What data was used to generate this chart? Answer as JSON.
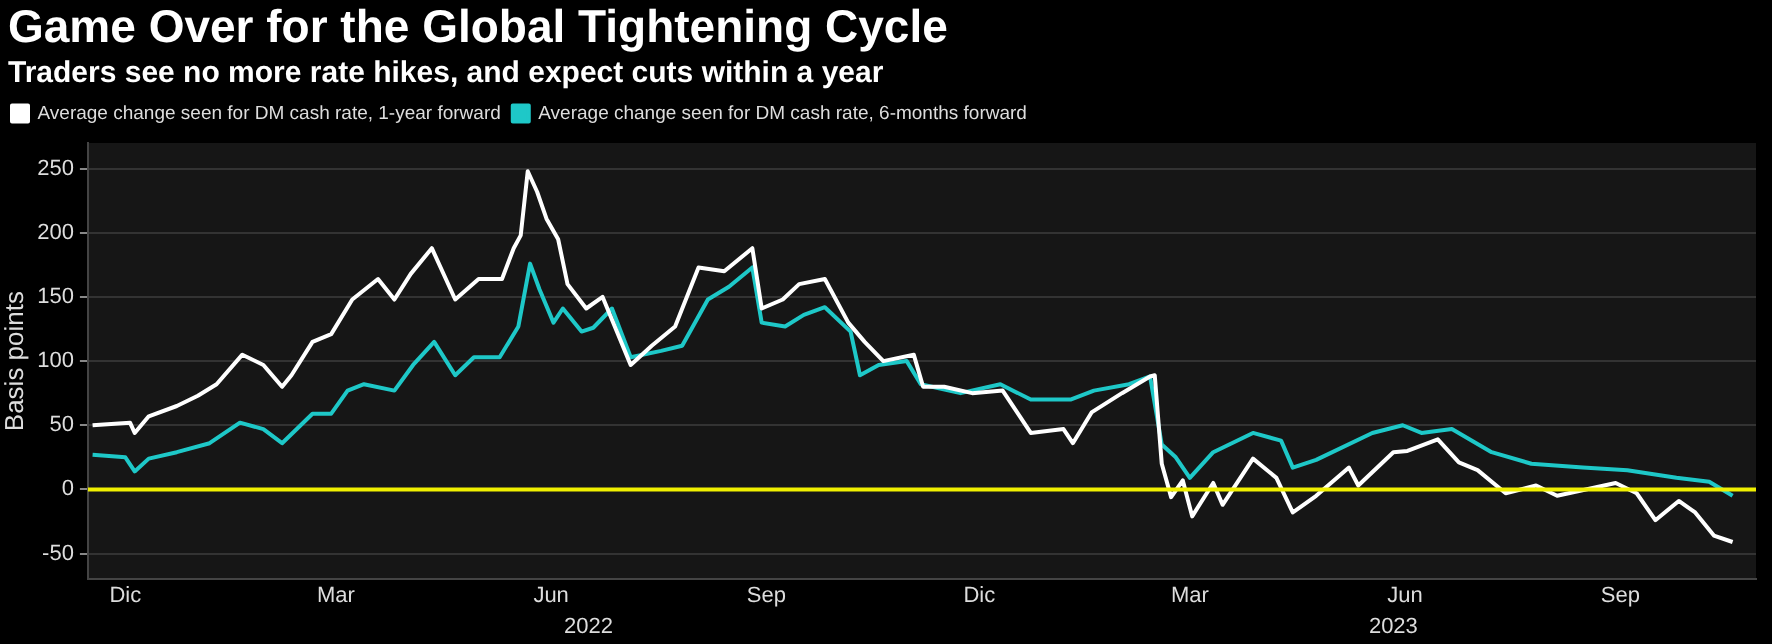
{
  "chart_data": {
    "type": "line",
    "title": "Game Over for the Global Tightening Cycle",
    "subtitle": "Traders see no more rate hikes, and expect cuts within a year",
    "ylabel": "Basis points",
    "xlim": [
      "2021-11-29",
      "2023-11-12"
    ],
    "xticks": [
      {
        "value": "2021-12-15",
        "label": "Dic"
      },
      {
        "value": "2022-03-15",
        "label": "Mar"
      },
      {
        "value": "2022-06-15",
        "label": "Jun"
      },
      {
        "value": "2022-09-15",
        "label": "Sep"
      },
      {
        "value": "2022-12-15",
        "label": "Dic"
      },
      {
        "value": "2023-03-15",
        "label": "Mar"
      },
      {
        "value": "2023-06-15",
        "label": "Jun"
      },
      {
        "value": "2023-09-15",
        "label": "Sep"
      }
    ],
    "x2lim": [
      "2021-11-29",
      "2023-11-12"
    ],
    "x2ticks": [
      {
        "value": "2022-07-01",
        "label": "2022"
      },
      {
        "value": "2023-06-10",
        "label": "2023"
      }
    ],
    "ylim": [
      -70,
      270
    ],
    "yticks": [
      -50,
      0,
      50,
      100,
      150,
      200,
      250
    ],
    "grid": "y",
    "legend": "top left",
    "marker": "none",
    "line_style": "solid",
    "ref_lines": [
      {
        "axis": "y",
        "value": 0,
        "color": "#f0f000"
      }
    ],
    "series": [
      {
        "name": "Average change seen for DM cash rate, 1-year forward",
        "color": "#ffffff",
        "x": [
          "2021-12-01",
          "2021-12-17",
          "2021-12-19",
          "2021-12-25",
          "2022-01-06",
          "2022-01-15",
          "2022-01-23",
          "2022-02-03",
          "2022-02-12",
          "2022-02-20",
          "2022-02-24",
          "2022-03-05",
          "2022-03-13",
          "2022-03-22",
          "2022-04-02",
          "2022-04-09",
          "2022-04-16",
          "2022-04-25",
          "2022-05-05",
          "2022-05-15",
          "2022-05-25",
          "2022-05-30",
          "2022-06-02",
          "2022-06-05",
          "2022-06-09",
          "2022-06-13",
          "2022-06-18",
          "2022-06-22",
          "2022-06-30",
          "2022-07-07",
          "2022-07-19",
          "2022-07-28",
          "2022-08-07",
          "2022-08-17",
          "2022-08-28",
          "2022-09-09",
          "2022-09-13",
          "2022-09-22",
          "2022-09-29",
          "2022-10-10",
          "2022-10-20",
          "2022-10-27",
          "2022-11-04",
          "2022-11-17",
          "2022-11-21",
          "2022-11-30",
          "2022-12-12",
          "2022-12-25",
          "2023-01-06",
          "2023-01-20",
          "2023-01-24",
          "2023-02-01",
          "2023-02-14",
          "2023-02-26",
          "2023-02-28",
          "2023-03-03",
          "2023-03-07",
          "2023-03-12",
          "2023-03-16",
          "2023-03-25",
          "2023-03-29",
          "2023-04-11",
          "2023-04-21",
          "2023-04-28",
          "2023-05-08",
          "2023-05-22",
          "2023-05-26",
          "2023-06-10",
          "2023-06-16",
          "2023-06-29",
          "2023-07-08",
          "2023-07-16",
          "2023-07-28",
          "2023-08-10",
          "2023-08-19",
          "2023-09-13",
          "2023-09-22",
          "2023-09-30",
          "2023-10-10",
          "2023-10-17",
          "2023-10-25",
          "2023-11-02"
        ],
        "values": [
          50,
          52,
          44,
          57,
          65,
          73,
          82,
          105,
          97,
          80,
          89,
          115,
          121,
          148,
          164,
          148,
          168,
          188,
          148,
          164,
          164,
          188,
          198,
          248,
          232,
          211,
          195,
          160,
          141,
          150,
          97,
          112,
          127,
          173,
          170,
          188,
          141,
          148,
          160,
          164,
          130,
          115,
          100,
          105,
          80,
          80,
          75,
          77,
          44,
          47,
          36,
          60,
          75,
          88,
          89,
          20,
          -6,
          7,
          -21,
          5,
          -12,
          24,
          9,
          -18,
          -5,
          17,
          3,
          29,
          30,
          39,
          21,
          15,
          -3,
          3,
          -5,
          5,
          -3,
          -24,
          -9,
          -18,
          -36,
          -41
        ]
      },
      {
        "name": "Average change seen for DM cash rate, 6-months forward",
        "color": "#1ec8c8",
        "x": [
          "2021-12-01",
          "2021-12-15",
          "2021-12-19",
          "2021-12-25",
          "2022-01-06",
          "2022-01-20",
          "2022-02-02",
          "2022-02-12",
          "2022-02-20",
          "2022-03-05",
          "2022-03-13",
          "2022-03-20",
          "2022-03-27",
          "2022-04-09",
          "2022-04-17",
          "2022-04-26",
          "2022-05-05",
          "2022-05-13",
          "2022-05-24",
          "2022-06-01",
          "2022-06-06",
          "2022-06-10",
          "2022-06-16",
          "2022-06-20",
          "2022-06-28",
          "2022-07-03",
          "2022-07-11",
          "2022-07-19",
          "2022-08-01",
          "2022-08-10",
          "2022-08-21",
          "2022-08-30",
          "2022-09-09",
          "2022-09-13",
          "2022-09-23",
          "2022-10-01",
          "2022-10-10",
          "2022-10-21",
          "2022-10-25",
          "2022-11-02",
          "2022-11-14",
          "2022-11-20",
          "2022-12-07",
          "2022-12-24",
          "2023-01-06",
          "2023-01-23",
          "2023-02-02",
          "2023-02-17",
          "2023-02-26",
          "2023-03-03",
          "2023-03-09",
          "2023-03-15",
          "2023-03-25",
          "2023-04-11",
          "2023-04-23",
          "2023-04-28",
          "2023-05-08",
          "2023-06-01",
          "2023-06-14",
          "2023-06-22",
          "2023-07-05",
          "2023-07-22",
          "2023-08-08",
          "2023-08-30",
          "2023-09-18",
          "2023-10-09",
          "2023-10-23",
          "2023-11-02"
        ],
        "values": [
          27,
          25,
          14,
          24,
          29,
          36,
          52,
          47,
          36,
          59,
          59,
          77,
          82,
          77,
          97,
          115,
          89,
          103,
          103,
          127,
          176,
          156,
          130,
          141,
          123,
          126,
          141,
          103,
          108,
          112,
          148,
          158,
          173,
          130,
          127,
          136,
          142,
          123,
          89,
          97,
          100,
          82,
          75,
          82,
          70,
          70,
          77,
          82,
          88,
          35,
          25,
          9,
          29,
          44,
          38,
          17,
          23,
          44,
          50,
          44,
          47,
          29,
          20,
          17,
          15,
          9,
          6,
          -5
        ]
      }
    ]
  }
}
